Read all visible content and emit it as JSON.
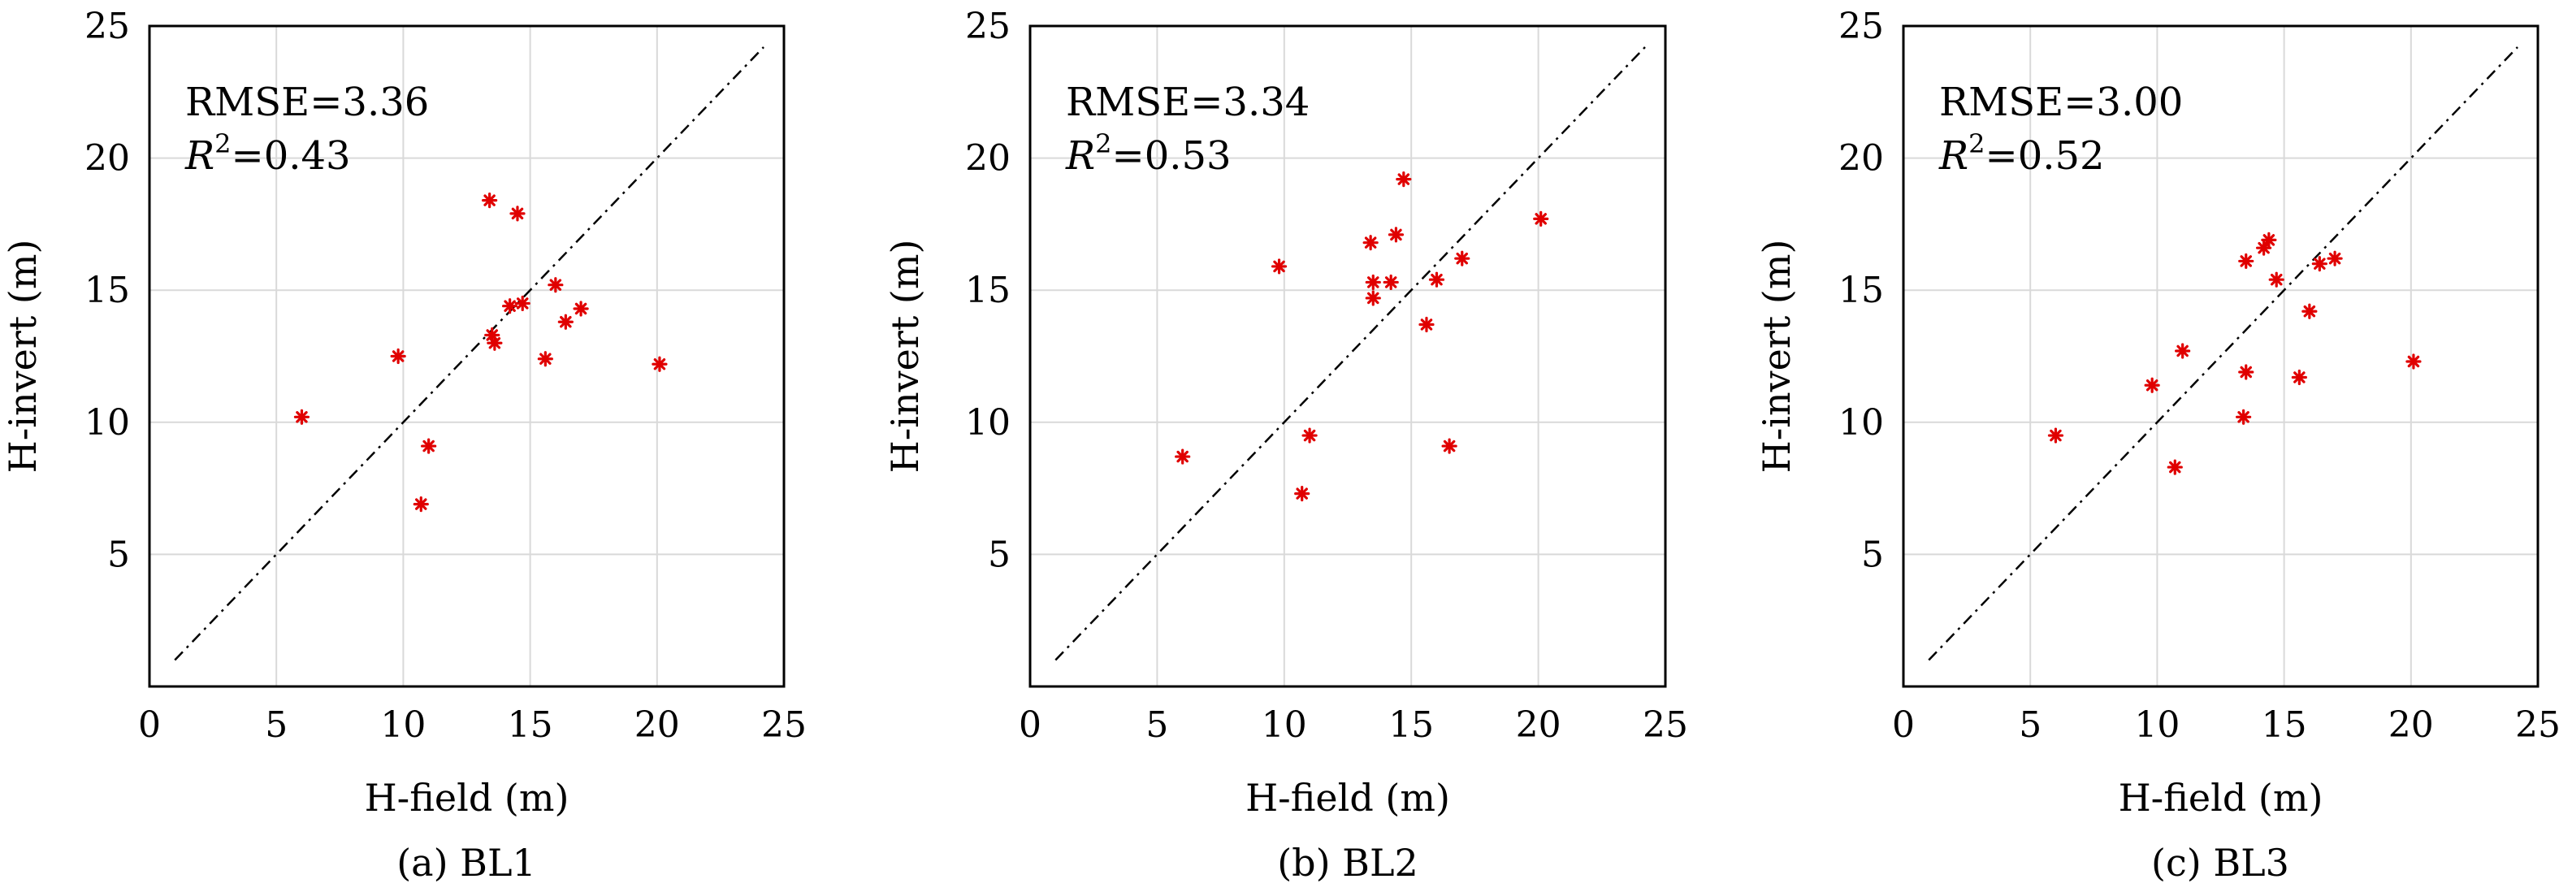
{
  "chart_data": [
    {
      "type": "scatter",
      "caption": "(a) BL1",
      "xlabel": "H-field (m)",
      "ylabel": "H-invert (m)",
      "xlim": [
        0,
        25
      ],
      "ylim": [
        0,
        25
      ],
      "xticks": [
        0,
        5,
        10,
        15,
        20,
        25
      ],
      "yticks": [
        5,
        10,
        15,
        20,
        25
      ],
      "grid": true,
      "reference_line": {
        "x": [
          1,
          24.2
        ],
        "y": [
          1,
          24.2
        ]
      },
      "stats": {
        "rmse": "RMSE=3.36",
        "r2_var": "R",
        "r2_sup": "2",
        "r2_val": "=0.43"
      },
      "marker_color": "#e00000",
      "points": [
        {
          "x": 6.0,
          "y": 10.2
        },
        {
          "x": 9.8,
          "y": 12.5
        },
        {
          "x": 10.7,
          "y": 6.9
        },
        {
          "x": 11.0,
          "y": 9.1
        },
        {
          "x": 13.4,
          "y": 18.4
        },
        {
          "x": 13.5,
          "y": 13.3
        },
        {
          "x": 13.6,
          "y": 13.0
        },
        {
          "x": 14.2,
          "y": 14.4
        },
        {
          "x": 14.5,
          "y": 17.9
        },
        {
          "x": 14.7,
          "y": 14.5
        },
        {
          "x": 15.6,
          "y": 12.4
        },
        {
          "x": 16.0,
          "y": 15.2
        },
        {
          "x": 16.4,
          "y": 13.8
        },
        {
          "x": 17.0,
          "y": 14.3
        },
        {
          "x": 20.1,
          "y": 12.2
        }
      ]
    },
    {
      "type": "scatter",
      "caption": "(b) BL2",
      "xlabel": "H-field (m)",
      "ylabel": "H-invert (m)",
      "xlim": [
        0,
        25
      ],
      "ylim": [
        0,
        25
      ],
      "xticks": [
        0,
        5,
        10,
        15,
        20,
        25
      ],
      "yticks": [
        5,
        10,
        15,
        20,
        25
      ],
      "grid": true,
      "reference_line": {
        "x": [
          1,
          24.2
        ],
        "y": [
          1,
          24.2
        ]
      },
      "stats": {
        "rmse": "RMSE=3.34",
        "r2_var": "R",
        "r2_sup": "2",
        "r2_val": "=0.53"
      },
      "marker_color": "#e00000",
      "points": [
        {
          "x": 6.0,
          "y": 8.7
        },
        {
          "x": 9.8,
          "y": 15.9
        },
        {
          "x": 10.7,
          "y": 7.3
        },
        {
          "x": 11.0,
          "y": 9.5
        },
        {
          "x": 13.4,
          "y": 16.8
        },
        {
          "x": 13.5,
          "y": 15.3
        },
        {
          "x": 13.5,
          "y": 14.7
        },
        {
          "x": 14.2,
          "y": 15.3
        },
        {
          "x": 14.4,
          "y": 17.1
        },
        {
          "x": 14.7,
          "y": 19.2
        },
        {
          "x": 15.6,
          "y": 13.7
        },
        {
          "x": 16.0,
          "y": 15.4
        },
        {
          "x": 16.5,
          "y": 9.1
        },
        {
          "x": 17.0,
          "y": 16.2
        },
        {
          "x": 20.1,
          "y": 17.7
        }
      ]
    },
    {
      "type": "scatter",
      "caption": "(c) BL3",
      "xlabel": "H-field (m)",
      "ylabel": "H-invert (m)",
      "xlim": [
        0,
        25
      ],
      "ylim": [
        0,
        25
      ],
      "xticks": [
        0,
        5,
        10,
        15,
        20,
        25
      ],
      "yticks": [
        5,
        10,
        15,
        20,
        25
      ],
      "grid": true,
      "reference_line": {
        "x": [
          1,
          24.2
        ],
        "y": [
          1,
          24.2
        ]
      },
      "stats": {
        "rmse": "RMSE=3.00",
        "r2_var": "R",
        "r2_sup": "2",
        "r2_val": "=0.52"
      },
      "marker_color": "#e00000",
      "points": [
        {
          "x": 6.0,
          "y": 9.5
        },
        {
          "x": 9.8,
          "y": 11.4
        },
        {
          "x": 10.7,
          "y": 8.3
        },
        {
          "x": 11.0,
          "y": 12.7
        },
        {
          "x": 13.4,
          "y": 10.2
        },
        {
          "x": 13.5,
          "y": 16.1
        },
        {
          "x": 13.5,
          "y": 11.9
        },
        {
          "x": 14.2,
          "y": 16.6
        },
        {
          "x": 14.4,
          "y": 16.9
        },
        {
          "x": 14.7,
          "y": 15.4
        },
        {
          "x": 15.6,
          "y": 11.7
        },
        {
          "x": 16.0,
          "y": 14.2
        },
        {
          "x": 16.4,
          "y": 16.0
        },
        {
          "x": 17.0,
          "y": 16.2
        },
        {
          "x": 20.1,
          "y": 12.3
        }
      ]
    }
  ]
}
